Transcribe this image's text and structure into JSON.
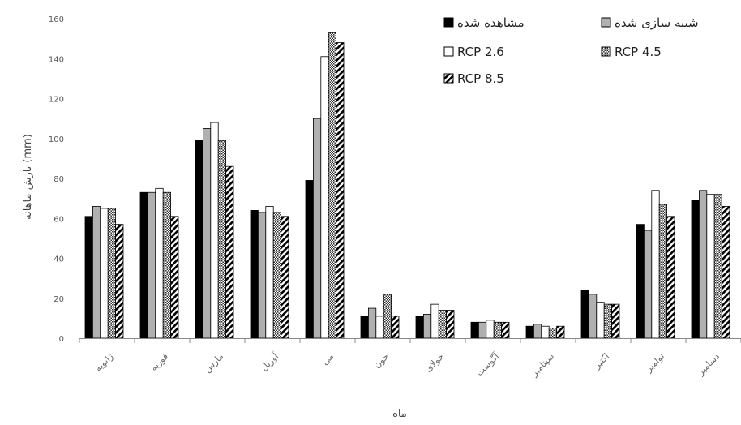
{
  "chart_data": {
    "type": "bar",
    "xlabel": "ماه",
    "ylabel": "بارش ماهانه (mm)",
    "ylim": [
      0,
      160
    ],
    "yticks": [
      0,
      20,
      40,
      60,
      80,
      100,
      120,
      140,
      160
    ],
    "categories": [
      "ژانویه",
      "فوریه",
      "مارس",
      "آوریل",
      "می",
      "جون",
      "جولای",
      "آگوست",
      "سپتامبر",
      "اکتبر",
      "نوامبر",
      "دسامبر"
    ],
    "series": [
      {
        "name": "مشاهده شده",
        "fill": "solid-black",
        "values": [
          61,
          73,
          99,
          64,
          79,
          11,
          11,
          8,
          6,
          24,
          57,
          69
        ]
      },
      {
        "name": "شبیه سازی شده",
        "fill": "solid-gray",
        "values": [
          66,
          73,
          105,
          63,
          110,
          15,
          12,
          8,
          7,
          22,
          54,
          74
        ]
      },
      {
        "name": "RCP 2.6",
        "fill": "white",
        "values": [
          65,
          75,
          108,
          66,
          141,
          11,
          17,
          9,
          6,
          18,
          74,
          72
        ]
      },
      {
        "name": "RCP 4.5",
        "fill": "checker",
        "values": [
          65,
          73,
          99,
          63,
          153,
          22,
          14,
          8,
          5,
          17,
          67,
          72
        ]
      },
      {
        "name": "RCP 8.5",
        "fill": "diagonal",
        "values": [
          57,
          61,
          86,
          61,
          148,
          11,
          14,
          8,
          6,
          17,
          61,
          66
        ]
      }
    ],
    "legend": "top-right",
    "grid": false,
    "colors": {
      "observed": "#000000",
      "simulated": "#b0b0b0",
      "rcp26": "#ffffff",
      "stroke": "#000000"
    }
  }
}
